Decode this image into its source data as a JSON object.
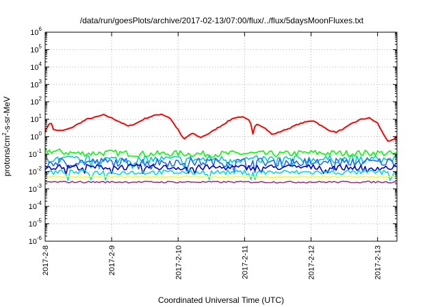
{
  "chart_data": {
    "type": "line",
    "title": "/data/run/goesPlots/archive/2017-02-13/07:00/flux/../flux/5daysMoonFluxes.txt",
    "xlabel": "Coordinated Universal Time (UTC)",
    "ylabel": {
      "pre": "protons/cm",
      "sup": "2",
      "post": "-s-sr-MeV"
    },
    "xlim": [
      "2017-02-08 00:00",
      "2017-02-13 07:00"
    ],
    "ylim": [
      1e-06,
      1000000.0
    ],
    "yscale": "log",
    "grid": true,
    "x_ticks": [
      "2017-2-8",
      "2017-2-9",
      "2017-2-10",
      "2017-2-11",
      "2017-2-12",
      "2017-2-13"
    ],
    "y_ticks": [
      {
        "base": "10",
        "exp": "-6"
      },
      {
        "base": "10",
        "exp": "-5"
      },
      {
        "base": "10",
        "exp": "-4"
      },
      {
        "base": "10",
        "exp": "-3"
      },
      {
        "base": "10",
        "exp": "-2"
      },
      {
        "base": "10",
        "exp": "-1"
      },
      {
        "base": "10",
        "exp": "0"
      },
      {
        "base": "10",
        "exp": "1"
      },
      {
        "base": "10",
        "exp": "2"
      },
      {
        "base": "10",
        "exp": "3"
      },
      {
        "base": "10",
        "exp": "4"
      },
      {
        "base": "10",
        "exp": "5"
      },
      {
        "base": "10",
        "exp": "6"
      }
    ],
    "series": [
      {
        "color": "#ff0000",
        "points": [
          [
            "2017-02-08 00:00",
            2.0
          ],
          [
            "2017-02-08 02:00",
            8.0
          ],
          [
            "2017-02-08 03:00",
            2.5
          ],
          [
            "2017-02-08 06:00",
            2.2
          ],
          [
            "2017-02-08 09:00",
            3.0
          ],
          [
            "2017-02-08 12:00",
            5.5
          ],
          [
            "2017-02-08 15:00",
            10.0
          ],
          [
            "2017-02-08 18:00",
            13.0
          ],
          [
            "2017-02-08 21:00",
            18.0
          ],
          [
            "2017-02-09 00:00",
            12.0
          ],
          [
            "2017-02-09 03:00",
            7.0
          ],
          [
            "2017-02-09 06:00",
            4.0
          ],
          [
            "2017-02-09 09:00",
            6.0
          ],
          [
            "2017-02-09 12:00",
            11.0
          ],
          [
            "2017-02-09 15:00",
            16.0
          ],
          [
            "2017-02-09 18:00",
            20.0
          ],
          [
            "2017-02-09 21:00",
            12.0
          ],
          [
            "2017-02-10 00:00",
            2.5
          ],
          [
            "2017-02-10 02:00",
            0.7
          ],
          [
            "2017-02-10 05:00",
            1.6
          ],
          [
            "2017-02-10 08:00",
            0.9
          ],
          [
            "2017-02-10 11:00",
            1.5
          ],
          [
            "2017-02-10 14:00",
            3.0
          ],
          [
            "2017-02-10 17:00",
            6.0
          ],
          [
            "2017-02-10 20:00",
            12.0
          ],
          [
            "2017-02-10 23:00",
            14.0
          ],
          [
            "2017-02-11 02:00",
            8.0
          ],
          [
            "2017-02-11 03:00",
            1.4
          ],
          [
            "2017-02-11 04:00",
            6.0
          ],
          [
            "2017-02-11 07:00",
            3.5
          ],
          [
            "2017-02-11 10:00",
            1.3
          ],
          [
            "2017-02-11 13:00",
            2.0
          ],
          [
            "2017-02-11 16:00",
            3.0
          ],
          [
            "2017-02-11 19:00",
            5.0
          ],
          [
            "2017-02-11 22:00",
            7.0
          ],
          [
            "2017-02-12 01:00",
            8.5
          ],
          [
            "2017-02-12 03:00",
            5.0
          ],
          [
            "2017-02-12 06:00",
            2.5
          ],
          [
            "2017-02-12 09:00",
            1.8
          ],
          [
            "2017-02-12 12:00",
            3.0
          ],
          [
            "2017-02-12 15:00",
            6.0
          ],
          [
            "2017-02-12 18:00",
            10.0
          ],
          [
            "2017-02-12 21:00",
            12.0
          ],
          [
            "2017-02-13 00:00",
            6.0
          ],
          [
            "2017-02-13 02:00",
            1.5
          ],
          [
            "2017-02-13 04:00",
            0.5
          ],
          [
            "2017-02-13 06:00",
            0.7
          ],
          [
            "2017-02-13 07:00",
            1.2
          ]
        ]
      },
      {
        "color": "#00ff00",
        "points": [
          [
            "2017-02-08 00:00",
            0.16
          ],
          [
            "2017-02-08 12:00",
            0.11
          ],
          [
            "2017-02-09 00:00",
            0.12
          ],
          [
            "2017-02-09 12:00",
            0.1
          ],
          [
            "2017-02-10 00:00",
            0.11
          ],
          [
            "2017-02-10 12:00",
            0.1
          ],
          [
            "2017-02-11 00:00",
            0.11
          ],
          [
            "2017-02-11 12:00",
            0.1
          ],
          [
            "2017-02-12 00:00",
            0.12
          ],
          [
            "2017-02-12 12:00",
            0.11
          ],
          [
            "2017-02-13 00:00",
            0.12
          ],
          [
            "2017-02-13 07:00",
            0.1
          ]
        ]
      },
      {
        "color": "#00cccc",
        "points": [
          [
            "2017-02-08 00:00",
            0.05
          ],
          [
            "2017-02-09 00:00",
            0.05
          ],
          [
            "2017-02-10 00:00",
            0.05
          ],
          [
            "2017-02-11 00:00",
            0.05
          ],
          [
            "2017-02-12 00:00",
            0.05
          ],
          [
            "2017-02-13 00:00",
            0.05
          ],
          [
            "2017-02-13 07:00",
            0.05
          ]
        ]
      },
      {
        "color": "#2266ff",
        "points": [
          [
            "2017-02-08 00:00",
            0.035
          ],
          [
            "2017-02-09 00:00",
            0.035
          ],
          [
            "2017-02-10 00:00",
            0.035
          ],
          [
            "2017-02-11 00:00",
            0.035
          ],
          [
            "2017-02-12 00:00",
            0.035
          ],
          [
            "2017-02-13 00:00",
            0.035
          ],
          [
            "2017-02-13 07:00",
            0.035
          ]
        ]
      },
      {
        "color": "#0000cc",
        "points": [
          [
            "2017-02-08 00:00",
            0.018
          ],
          [
            "2017-02-09 00:00",
            0.018
          ],
          [
            "2017-02-10 00:00",
            0.017
          ],
          [
            "2017-02-11 00:00",
            0.017
          ],
          [
            "2017-02-12 00:00",
            0.018
          ],
          [
            "2017-02-13 00:00",
            0.016
          ],
          [
            "2017-02-13 07:00",
            0.017
          ]
        ]
      },
      {
        "color": "#00dddd",
        "points": [
          [
            "2017-02-08 00:00",
            0.009
          ],
          [
            "2017-02-09 00:00",
            0.009
          ],
          [
            "2017-02-10 00:00",
            0.009
          ],
          [
            "2017-02-11 00:00",
            0.009
          ],
          [
            "2017-02-12 00:00",
            0.009
          ],
          [
            "2017-02-13 00:00",
            0.009
          ],
          [
            "2017-02-13 07:00",
            0.009
          ]
        ]
      },
      {
        "color": "#ffff00",
        "points": [
          [
            "2017-02-08 00:00",
            0.005
          ],
          [
            "2017-02-09 00:00",
            0.005
          ],
          [
            "2017-02-10 00:00",
            0.005
          ],
          [
            "2017-02-11 00:00",
            0.005
          ],
          [
            "2017-02-12 00:00",
            0.005
          ],
          [
            "2017-02-13 00:00",
            0.005
          ],
          [
            "2017-02-13 07:00",
            0.005
          ]
        ]
      },
      {
        "color": "#993377",
        "points": [
          [
            "2017-02-08 00:00",
            0.0025
          ],
          [
            "2017-02-09 00:00",
            0.0025
          ],
          [
            "2017-02-10 00:00",
            0.0025
          ],
          [
            "2017-02-11 00:00",
            0.0025
          ],
          [
            "2017-02-12 00:00",
            0.0025
          ],
          [
            "2017-02-13 00:00",
            0.0025
          ],
          [
            "2017-02-13 07:00",
            0.0025
          ]
        ]
      }
    ]
  }
}
